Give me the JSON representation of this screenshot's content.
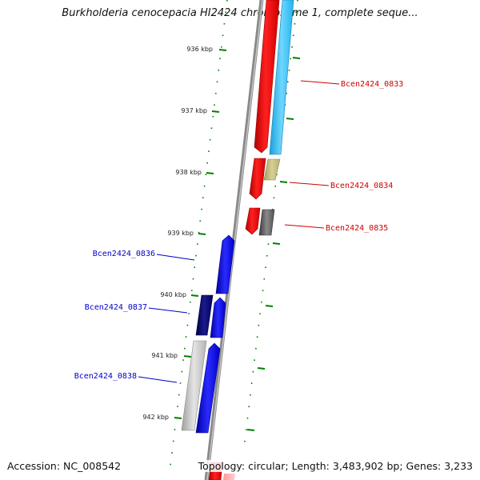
{
  "title": "Burkholderia cenocepacia HI2424 chromosome 1, complete seque...",
  "footer": {
    "accession": "Accession: NC_008542",
    "summary": "Topology: circular; Length: 3,483,902 bp; Genes: 3,233"
  },
  "ticks": [
    {
      "label": "936 kbp"
    },
    {
      "label": "937 kbp"
    },
    {
      "label": "938 kbp"
    },
    {
      "label": "939 kbp"
    },
    {
      "label": "940 kbp"
    },
    {
      "label": "941 kbp"
    },
    {
      "label": "942 kbp"
    }
  ],
  "genes": [
    {
      "label": "Bcen2424_0833",
      "strand": "forward",
      "color": "#cc0000"
    },
    {
      "label": "Bcen2424_0834",
      "strand": "forward",
      "color": "#cc0000"
    },
    {
      "label": "Bcen2424_0835",
      "strand": "forward",
      "color": "#cc0000"
    },
    {
      "label": "Bcen2424_0836",
      "strand": "reverse",
      "color": "#0000cc"
    },
    {
      "label": "Bcen2424_0837",
      "strand": "reverse",
      "color": "#0000cc"
    },
    {
      "label": "Bcen2424_0838",
      "strand": "reverse",
      "color": "#0000cc"
    }
  ],
  "colors": {
    "forward_cds": "#ff0000",
    "reverse_cds": "#0000ff",
    "backbone": "#8a8a8a",
    "ticks": "#008000"
  }
}
